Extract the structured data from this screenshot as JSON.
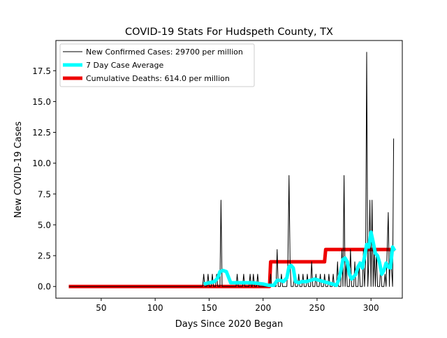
{
  "chart_data": {
    "type": "line",
    "title": "COVID-19 Stats For Hudspeth County, TX",
    "xlabel": "Days Since 2020 Began",
    "ylabel": "New COVID-19 Cases",
    "xlim": [
      8,
      329
    ],
    "ylim": [
      -0.95,
      19.95
    ],
    "xticks": [
      50,
      100,
      150,
      200,
      250,
      300
    ],
    "yticks": [
      0.0,
      2.5,
      5.0,
      7.5,
      10.0,
      12.5,
      15.0,
      17.5
    ],
    "ytick_labels": [
      "0.0",
      "2.5",
      "5.0",
      "7.5",
      "10.0",
      "12.5",
      "15.0",
      "17.5"
    ],
    "legend_position": "upper-left",
    "series": [
      {
        "name": "New Confirmed Cases: 29700 per million",
        "color": "#000000",
        "kind": "daily",
        "x": [
          20,
          144,
          145,
          146,
          148,
          149,
          150,
          152,
          153,
          154,
          156,
          157,
          158,
          160,
          161,
          162,
          164,
          175,
          176,
          177,
          181,
          182,
          183,
          187,
          188,
          189,
          190,
          191,
          192,
          194,
          195,
          196,
          198,
          206,
          207,
          208,
          210,
          212,
          213,
          214,
          216,
          217,
          218,
          220,
          222,
          223,
          224,
          225,
          226,
          228,
          229,
          230,
          232,
          233,
          234,
          236,
          237,
          238,
          240,
          241,
          242,
          244,
          245,
          246,
          248,
          249,
          250,
          252,
          253,
          254,
          256,
          257,
          258,
          260,
          261,
          262,
          264,
          265,
          266,
          268,
          269,
          270,
          272,
          273,
          274,
          275,
          276,
          277,
          278,
          280,
          281,
          282,
          284,
          285,
          286,
          288,
          289,
          290,
          292,
          293,
          294,
          295,
          296,
          297,
          298,
          299,
          300,
          301,
          302,
          303,
          304,
          305,
          306,
          308,
          309,
          310,
          312,
          313,
          314,
          316,
          317,
          318,
          320,
          321
        ],
        "y": [
          0,
          0,
          1,
          0,
          0,
          1,
          0,
          0,
          1,
          0,
          0,
          1,
          0,
          0,
          7,
          0,
          0,
          0,
          1,
          0,
          0,
          1,
          0,
          0,
          1,
          0,
          0,
          1,
          0,
          0,
          1,
          0,
          0,
          0,
          1,
          0,
          0,
          0,
          3,
          0,
          0,
          1,
          0,
          0,
          0,
          2,
          9,
          2,
          0,
          0,
          1,
          0,
          0,
          1,
          0,
          0,
          1,
          0,
          0,
          1,
          0,
          0,
          2,
          0,
          0,
          1,
          0,
          0,
          1,
          0,
          0,
          1,
          0,
          0,
          1,
          0,
          0,
          1,
          0,
          0,
          2,
          0,
          0,
          3,
          0,
          9,
          0,
          2,
          0,
          0,
          3,
          0,
          0,
          2,
          0,
          0,
          2,
          0,
          0,
          3,
          0,
          2,
          19,
          0,
          2,
          7,
          0,
          7,
          0,
          3,
          0,
          3,
          0,
          0,
          2,
          0,
          0,
          1,
          0,
          6,
          0,
          3,
          0,
          12
        ]
      },
      {
        "name": "7 Day Case Average",
        "color": "#00ffff",
        "kind": "average",
        "x": [
          145,
          150,
          155,
          158,
          160,
          163,
          166,
          170,
          180,
          190,
          200,
          205,
          210,
          213,
          216,
          219,
          222,
          224,
          226,
          228,
          230,
          233,
          236,
          240,
          244,
          248,
          252,
          256,
          260,
          264,
          268,
          270,
          272,
          274,
          276,
          278,
          280,
          282,
          284,
          286,
          288,
          290,
          292,
          294,
          296,
          298,
          300,
          302,
          304,
          306,
          308,
          310,
          312,
          314,
          316,
          318,
          320,
          322
        ],
        "y": [
          0.2,
          0.3,
          0.4,
          0.7,
          1.2,
          1.3,
          1.2,
          0.3,
          0.3,
          0.3,
          0.2,
          0.1,
          0.1,
          0.5,
          0.5,
          0.4,
          0.7,
          1.6,
          1.7,
          1.5,
          0.4,
          0.3,
          0.4,
          0.4,
          0.5,
          0.6,
          0.5,
          0.4,
          0.3,
          0.2,
          0.1,
          0.5,
          1.2,
          2.2,
          2.3,
          2.0,
          1.0,
          0.6,
          0.8,
          1.0,
          1.6,
          1.9,
          1.5,
          2.4,
          3.4,
          3.2,
          4.4,
          3.6,
          2.7,
          2.5,
          1.9,
          1.0,
          1.3,
          1.9,
          1.6,
          1.5,
          3.2,
          2.9
        ]
      },
      {
        "name": "Cumulative Deaths: 614.0 per million",
        "color": "#ee0000",
        "kind": "step",
        "x": [
          20,
          206,
          207,
          257,
          258,
          322
        ],
        "y": [
          0,
          0,
          2,
          2,
          3,
          3
        ]
      }
    ]
  }
}
